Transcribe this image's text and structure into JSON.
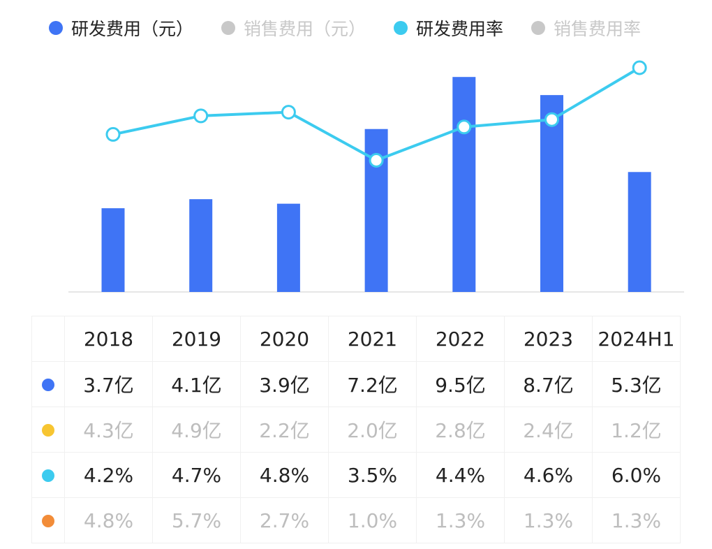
{
  "legend": [
    {
      "label": "研发费用（元）",
      "color": "#3f74f5",
      "active": true
    },
    {
      "label": "销售费用（元）",
      "color": "#c8c8c8",
      "active": false
    },
    {
      "label": "研发费用率",
      "color": "#3ccbef",
      "active": true
    },
    {
      "label": "销售费用率",
      "color": "#c8c8c8",
      "active": false
    }
  ],
  "chart_data": {
    "type": "bar+line",
    "categories": [
      "2018",
      "2019",
      "2020",
      "2021",
      "2022",
      "2023",
      "2024H1"
    ],
    "series": [
      {
        "name": "研发费用（元）",
        "type": "bar",
        "unit": "亿",
        "color": "#3f74f5",
        "values": [
          3.7,
          4.1,
          3.9,
          7.2,
          9.5,
          8.7,
          5.3
        ]
      },
      {
        "name": "销售费用（元）",
        "type": "bar",
        "unit": "亿",
        "hidden": true,
        "values": [
          4.3,
          4.9,
          2.2,
          2.0,
          2.8,
          2.4,
          1.2
        ]
      },
      {
        "name": "研发费用率",
        "type": "line",
        "unit": "%",
        "color": "#3ccbef",
        "values": [
          4.2,
          4.7,
          4.8,
          3.5,
          4.4,
          4.6,
          6.0
        ]
      },
      {
        "name": "销售费用率",
        "type": "line",
        "unit": "%",
        "hidden": true,
        "values": [
          4.8,
          5.7,
          2.7,
          1.0,
          1.3,
          1.3,
          1.3
        ]
      }
    ],
    "grid": false
  },
  "table": {
    "header": [
      "2018",
      "2019",
      "2020",
      "2021",
      "2022",
      "2023",
      "2024H1"
    ],
    "rows": [
      {
        "color": "#3f74f5",
        "muted": false,
        "cells": [
          "3.7亿",
          "4.1亿",
          "3.9亿",
          "7.2亿",
          "9.5亿",
          "8.7亿",
          "5.3亿"
        ]
      },
      {
        "color": "#f7c531",
        "muted": true,
        "cells": [
          "4.3亿",
          "4.9亿",
          "2.2亿",
          "2.0亿",
          "2.8亿",
          "2.4亿",
          "1.2亿"
        ]
      },
      {
        "color": "#3ccbef",
        "muted": false,
        "cells": [
          "4.2%",
          "4.7%",
          "4.8%",
          "3.5%",
          "4.4%",
          "4.6%",
          "6.0%"
        ]
      },
      {
        "color": "#f28c38",
        "muted": true,
        "cells": [
          "4.8%",
          "5.7%",
          "2.7%",
          "1.0%",
          "1.3%",
          "1.3%",
          "1.3%"
        ]
      }
    ]
  }
}
